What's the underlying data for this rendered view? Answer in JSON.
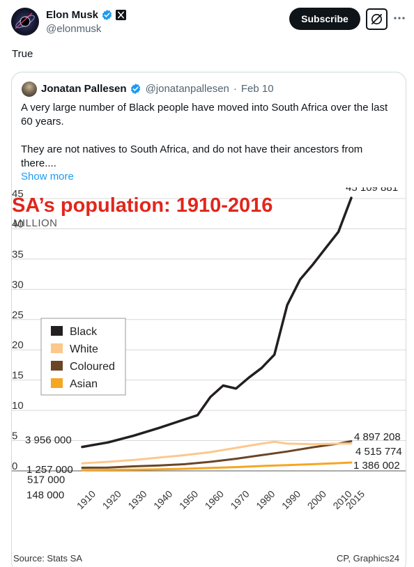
{
  "post": {
    "author_name": "Elon Musk",
    "handle": "@elonmusk",
    "subscribe_label": "Subscribe",
    "text": "True",
    "icons": {
      "verified": "verified-badge-icon",
      "platform": "x-logo-icon",
      "grok": "grok-icon",
      "more": "more-dots-icon"
    }
  },
  "quote": {
    "author_name": "Jonatan Pallesen",
    "handle": "@jonatanpallesen",
    "separator": "·",
    "date": "Feb 10",
    "paragraphs": [
      "A very large number of Black people have moved into South Africa over the last 60 years.",
      "They are not natives to South Africa, and do not have their ancestors from there...."
    ],
    "show_more": "Show more"
  },
  "colors": {
    "black": "#231f20",
    "white": "#fcc88c",
    "coloured": "#6b4526",
    "asian": "#f5a623",
    "title": "#e1261c",
    "link": "#1d9bf0"
  },
  "chart_data": {
    "type": "line",
    "title": "SA’s population: 1910-2016",
    "ylabel": "MILLION",
    "ylim": [
      0,
      45
    ],
    "yticks": [
      0,
      5,
      10,
      15,
      20,
      25,
      30,
      35,
      40,
      45
    ],
    "xticks": [
      1910,
      1920,
      1930,
      1940,
      1950,
      1960,
      1970,
      1980,
      1990,
      2000,
      2010,
      2015
    ],
    "legend_placement": "top-left",
    "grid": true,
    "source": "Source: Stats SA",
    "credit": "CP, Graphics24",
    "series": [
      {
        "name": "Black",
        "color": "#231f20",
        "x": [
          1910,
          1920,
          1930,
          1940,
          1950,
          1955,
          1960,
          1965,
          1970,
          1975,
          1980,
          1985,
          1990,
          1995,
          2000,
          2005,
          2010,
          2015
        ],
        "y": [
          3.956,
          4.7,
          5.8,
          7.1,
          8.5,
          9.2,
          12.2,
          14.1,
          13.6,
          15.4,
          17.0,
          19.2,
          27.4,
          31.6,
          34.1,
          36.8,
          39.5,
          45.1
        ]
      },
      {
        "name": "White",
        "color": "#fcc88c",
        "x": [
          1910,
          1920,
          1930,
          1940,
          1950,
          1960,
          1970,
          1980,
          1985,
          1990,
          2000,
          2010,
          2015
        ],
        "y": [
          1.257,
          1.5,
          1.8,
          2.2,
          2.6,
          3.1,
          3.8,
          4.5,
          4.8,
          4.5,
          4.4,
          4.5,
          4.515774
        ]
      },
      {
        "name": "Coloured",
        "color": "#6b4526",
        "x": [
          1910,
          1920,
          1930,
          1940,
          1950,
          1960,
          1970,
          1980,
          1990,
          2000,
          2010,
          2015
        ],
        "y": [
          0.517,
          0.55,
          0.75,
          0.9,
          1.1,
          1.5,
          2.0,
          2.6,
          3.2,
          3.9,
          4.5,
          4.897208
        ]
      },
      {
        "name": "Asian",
        "color": "#f5a623",
        "x": [
          1910,
          1920,
          1930,
          1940,
          1950,
          1960,
          1970,
          1980,
          1990,
          2000,
          2010,
          2015
        ],
        "y": [
          0.148,
          0.17,
          0.2,
          0.25,
          0.35,
          0.48,
          0.62,
          0.8,
          0.95,
          1.1,
          1.28,
          1.386002
        ]
      }
    ],
    "annotations": [
      {
        "text": "3 956 000",
        "x": 1910,
        "y": 3.956
      },
      {
        "text": "1 257 000",
        "x": 1910,
        "y": 1.257
      },
      {
        "text": "517 000",
        "x": 1910,
        "y": 0.517
      },
      {
        "text": "148 000",
        "x": 1910,
        "y": 0.148
      },
      {
        "text": "45 109 881",
        "x": 2015,
        "y": 45.1
      },
      {
        "text": "4 897 208",
        "x": 2015,
        "y": 4.897208
      },
      {
        "text": "4 515 774",
        "x": 2015,
        "y": 4.515774
      },
      {
        "text": "1 386 002",
        "x": 2015,
        "y": 1.386002
      }
    ]
  }
}
